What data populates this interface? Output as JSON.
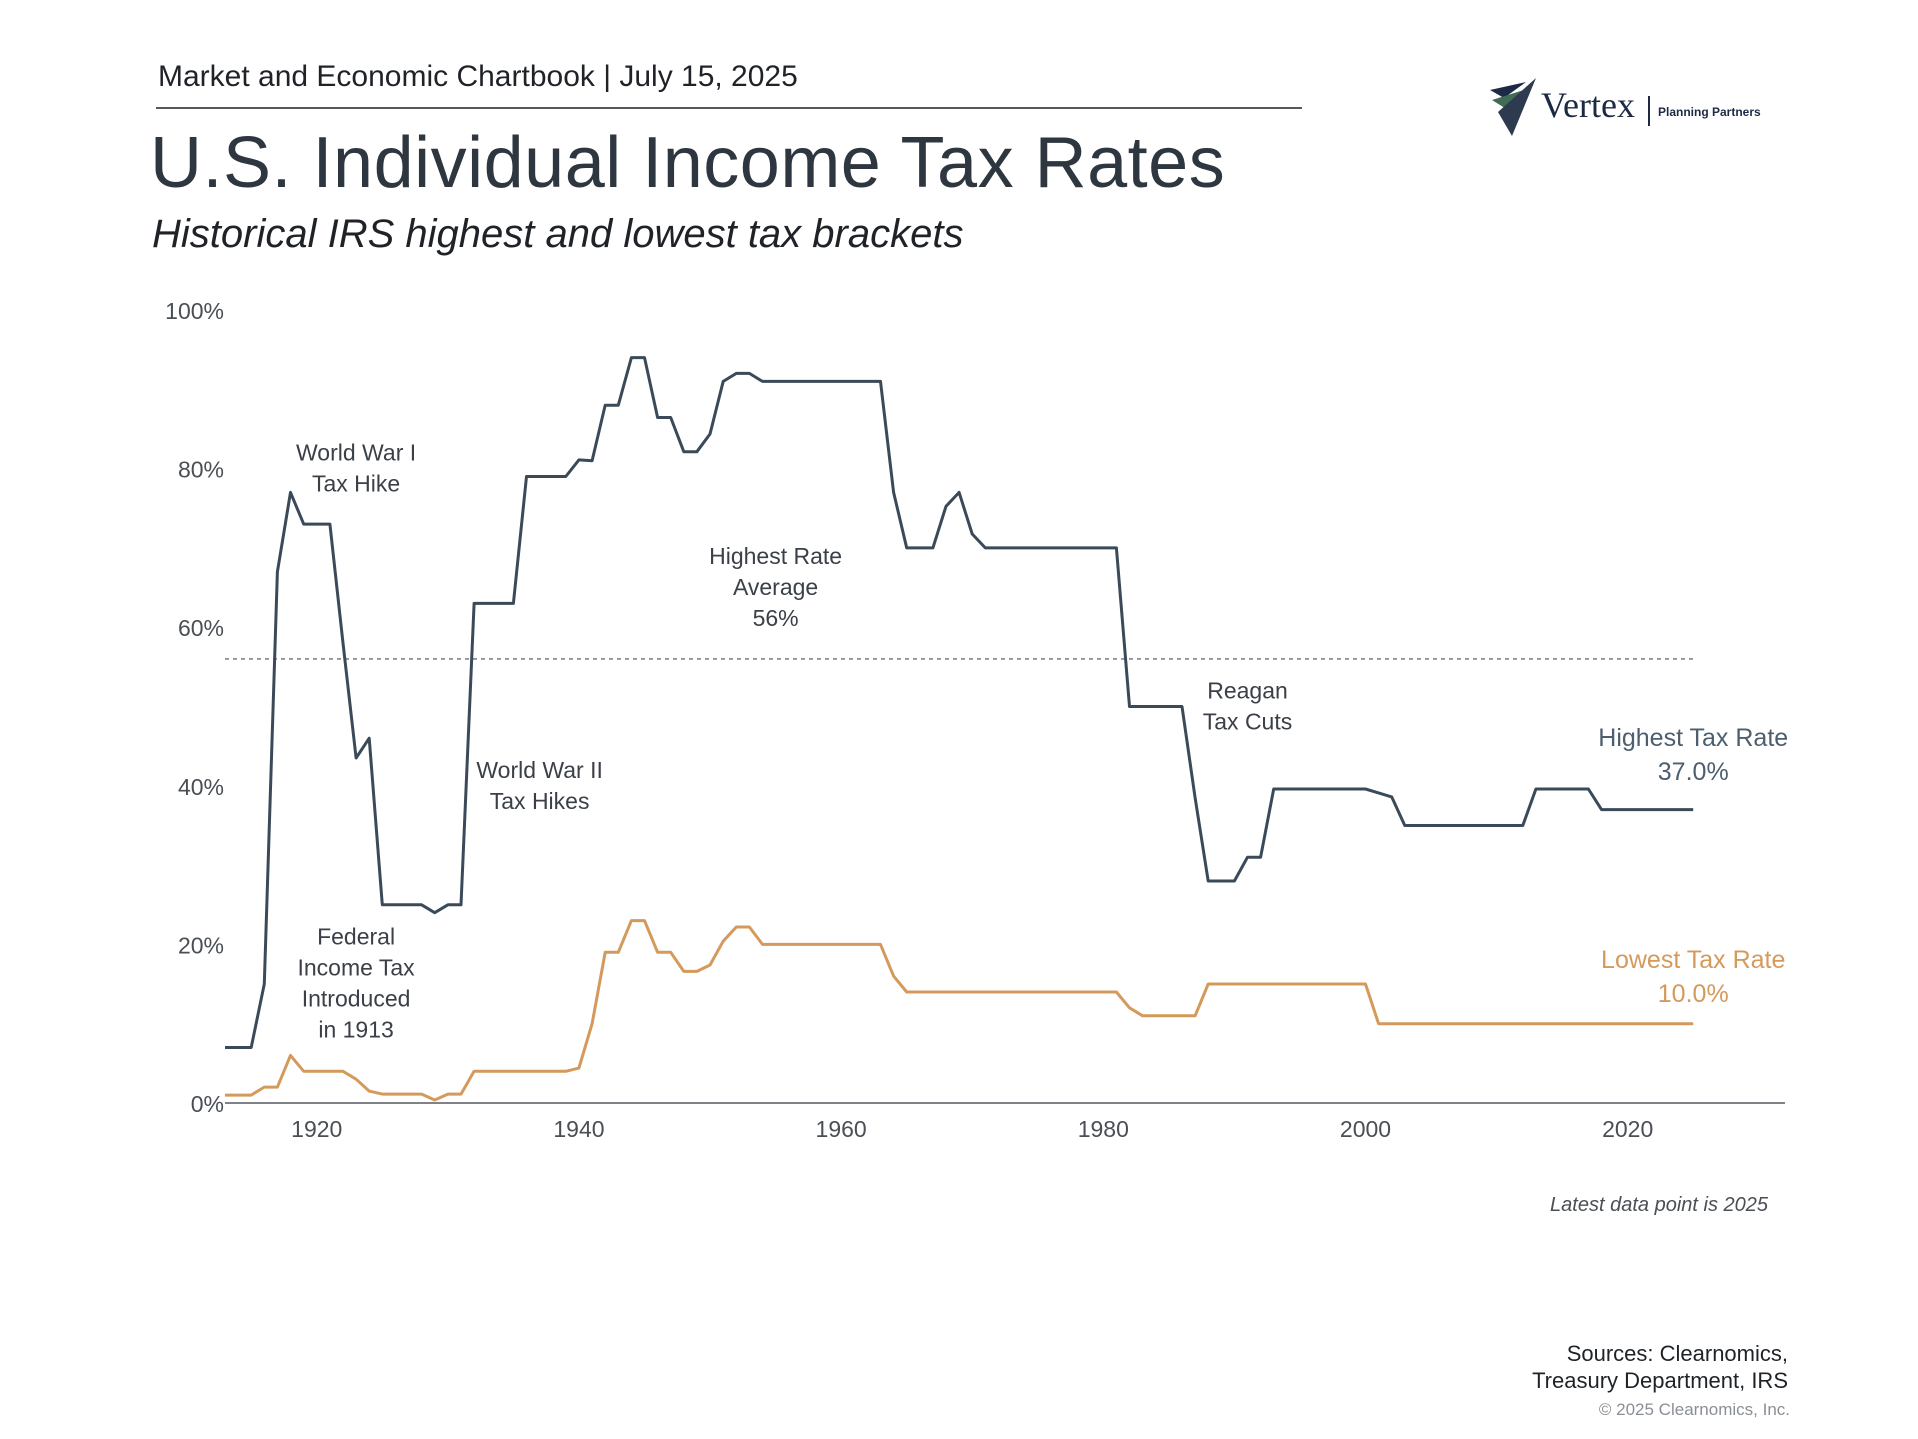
{
  "header": {
    "chartbook": "Market and Economic Chartbook | July 15, 2025",
    "title": "U.S. Individual Income Tax Rates",
    "subtitle": "Historical IRS highest and lowest tax brackets"
  },
  "logo": {
    "name": "Vertex",
    "tagline": "Planning Partners",
    "colors": [
      "#1d2a44",
      "#3f6b57",
      "#2e3a4f"
    ]
  },
  "footer": {
    "note": "Latest data point is 2025",
    "sources_line1": "Sources: Clearnomics,",
    "sources_line2": "Treasury Department, IRS",
    "copyright": "© 2025 Clearnomics, Inc."
  },
  "chart_data": {
    "type": "line",
    "xlim": [
      1913,
      2032
    ],
    "ylim": [
      0,
      100
    ],
    "x_ticks": [
      1920,
      1940,
      1960,
      1980,
      2000,
      2020
    ],
    "y_ticks": [
      "0%",
      "20%",
      "40%",
      "60%",
      "80%",
      "100%"
    ],
    "y_tick_values": [
      0,
      20,
      40,
      60,
      80,
      100
    ],
    "grid": false,
    "reference_line": {
      "value": 56,
      "style": "dashed"
    },
    "series": [
      {
        "name": "Highest Tax Rate",
        "color": "#3b4a59",
        "end_label": "37.0%",
        "points": [
          [
            1913,
            7
          ],
          [
            1915,
            7
          ],
          [
            1916,
            15
          ],
          [
            1917,
            67
          ],
          [
            1918,
            77
          ],
          [
            1919,
            73
          ],
          [
            1921,
            73
          ],
          [
            1922,
            58
          ],
          [
            1923,
            43.5
          ],
          [
            1924,
            46
          ],
          [
            1925,
            25
          ],
          [
            1928,
            25
          ],
          [
            1929,
            24
          ],
          [
            1930,
            25
          ],
          [
            1931,
            25
          ],
          [
            1932,
            63
          ],
          [
            1935,
            63
          ],
          [
            1936,
            79
          ],
          [
            1939,
            79
          ],
          [
            1940,
            81.1
          ],
          [
            1941,
            81
          ],
          [
            1942,
            88
          ],
          [
            1943,
            88
          ],
          [
            1944,
            94
          ],
          [
            1945,
            94
          ],
          [
            1946,
            86.45
          ],
          [
            1947,
            86.45
          ],
          [
            1948,
            82.13
          ],
          [
            1949,
            82.13
          ],
          [
            1950,
            84.36
          ],
          [
            1951,
            91
          ],
          [
            1952,
            92
          ],
          [
            1953,
            92
          ],
          [
            1954,
            91
          ],
          [
            1963,
            91
          ],
          [
            1964,
            77
          ],
          [
            1965,
            70
          ],
          [
            1967,
            70
          ],
          [
            1968,
            75.25
          ],
          [
            1969,
            77
          ],
          [
            1970,
            71.75
          ],
          [
            1971,
            70
          ],
          [
            1981,
            70
          ],
          [
            1982,
            50
          ],
          [
            1986,
            50
          ],
          [
            1987,
            38.5
          ],
          [
            1988,
            28
          ],
          [
            1990,
            28
          ],
          [
            1991,
            31
          ],
          [
            1992,
            31
          ],
          [
            1993,
            39.6
          ],
          [
            2000,
            39.6
          ],
          [
            2001,
            39.1
          ],
          [
            2002,
            38.6
          ],
          [
            2003,
            35
          ],
          [
            2012,
            35
          ],
          [
            2013,
            39.6
          ],
          [
            2017,
            39.6
          ],
          [
            2018,
            37
          ],
          [
            2025,
            37
          ]
        ]
      },
      {
        "name": "Lowest Tax Rate",
        "color": "#d49a5c",
        "end_label": "10.0%",
        "points": [
          [
            1913,
            1
          ],
          [
            1915,
            1
          ],
          [
            1916,
            2
          ],
          [
            1917,
            2
          ],
          [
            1918,
            6
          ],
          [
            1919,
            4
          ],
          [
            1922,
            4
          ],
          [
            1923,
            3
          ],
          [
            1924,
            1.5
          ],
          [
            1925,
            1.125
          ],
          [
            1928,
            1.125
          ],
          [
            1929,
            0.375
          ],
          [
            1930,
            1.125
          ],
          [
            1931,
            1.125
          ],
          [
            1932,
            4
          ],
          [
            1939,
            4
          ],
          [
            1940,
            4.4
          ],
          [
            1941,
            10
          ],
          [
            1942,
            19
          ],
          [
            1943,
            19
          ],
          [
            1944,
            23
          ],
          [
            1945,
            23
          ],
          [
            1946,
            19
          ],
          [
            1947,
            19
          ],
          [
            1948,
            16.6
          ],
          [
            1949,
            16.6
          ],
          [
            1950,
            17.4
          ],
          [
            1951,
            20.4
          ],
          [
            1952,
            22.2
          ],
          [
            1953,
            22.2
          ],
          [
            1954,
            20
          ],
          [
            1963,
            20
          ],
          [
            1964,
            16
          ],
          [
            1965,
            14
          ],
          [
            1981,
            14
          ],
          [
            1982,
            12
          ],
          [
            1983,
            11
          ],
          [
            1987,
            11
          ],
          [
            1988,
            15
          ],
          [
            2000,
            15
          ],
          [
            2001,
            10
          ],
          [
            2025,
            10
          ]
        ]
      }
    ],
    "annotations": [
      {
        "lines": [
          "World War I",
          "Tax Hike"
        ],
        "x": 1923,
        "y": 81
      },
      {
        "lines": [
          "Federal",
          "Income Tax",
          "Introduced",
          "in 1913"
        ],
        "x": 1923,
        "y": 20
      },
      {
        "lines": [
          "World War II",
          "Tax Hikes"
        ],
        "x": 1937,
        "y": 41
      },
      {
        "lines": [
          "Highest Rate",
          "Average",
          "56%"
        ],
        "x": 1955,
        "y": 68
      },
      {
        "lines": [
          "Reagan",
          "Tax Cuts"
        ],
        "x": 1991,
        "y": 51
      },
      {
        "lines": [
          "Highest Tax Rate",
          "37.0%"
        ],
        "x": 2025,
        "y": 45,
        "series": 0
      },
      {
        "lines": [
          "Lowest Tax Rate",
          "10.0%"
        ],
        "x": 2025,
        "y": 17,
        "series": 1
      }
    ]
  }
}
